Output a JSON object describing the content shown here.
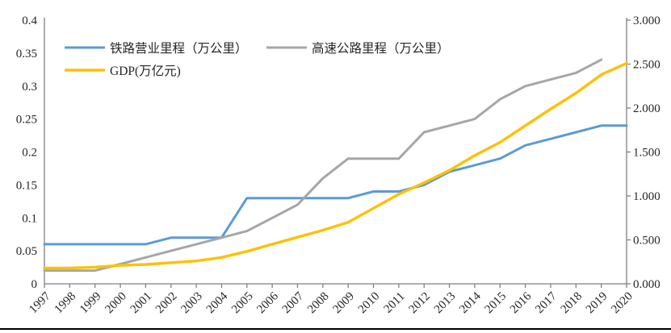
{
  "chart_data": {
    "type": "line",
    "title": "",
    "x": [
      "1997",
      "1998",
      "1999",
      "2000",
      "2001",
      "2002",
      "2003",
      "2004",
      "2005",
      "2006",
      "2007",
      "2008",
      "2009",
      "2010",
      "2011",
      "2012",
      "2013",
      "2014",
      "2015",
      "2016",
      "2017",
      "2018",
      "2019",
      "2020"
    ],
    "series": [
      {
        "name": "铁路营业里程（万公里）",
        "axis": "left",
        "color": "#5B9BD5",
        "stroke_width": 3,
        "values": [
          0.06,
          0.06,
          0.06,
          0.06,
          0.06,
          0.07,
          0.07,
          0.07,
          0.13,
          0.13,
          0.13,
          0.13,
          0.13,
          0.14,
          0.14,
          0.15,
          0.17,
          0.18,
          0.19,
          0.21,
          0.22,
          0.23,
          0.24,
          0.24
        ]
      },
      {
        "name": "高速公路里程（万公里）",
        "axis": "left",
        "color": "#A6A6A6",
        "stroke_width": 3,
        "values": [
          0.02,
          0.02,
          0.02,
          0.03,
          0.04,
          0.05,
          0.06,
          0.07,
          0.08,
          0.1,
          0.12,
          0.16,
          0.19,
          0.19,
          0.19,
          0.23,
          0.24,
          0.25,
          0.28,
          0.3,
          0.31,
          0.32,
          0.34,
          null
        ]
      },
      {
        "name": "GDP(万亿元)",
        "axis": "right",
        "color": "#FFC000",
        "stroke_width": 3.4,
        "values": [
          0.18,
          0.18,
          0.19,
          0.21,
          0.22,
          0.24,
          0.26,
          0.3,
          0.37,
          0.45,
          0.53,
          0.61,
          0.7,
          0.86,
          1.02,
          1.15,
          1.29,
          1.46,
          1.61,
          1.8,
          1.99,
          2.17,
          2.38,
          2.51
        ]
      }
    ],
    "left_axis": {
      "min": 0,
      "max": 0.4,
      "tick_labels": [
        "0",
        "0.05",
        "0.1",
        "0.15",
        "0.2",
        "0.25",
        "0.3",
        "0.35",
        "0.4"
      ]
    },
    "right_axis": {
      "min": 0,
      "max": 3.0,
      "tick_labels": [
        "0.000",
        "0.500",
        "1.000",
        "1.500",
        "2.000",
        "2.500",
        "3.000"
      ]
    },
    "legend_position": "top-left-inside",
    "grid": false,
    "axis_color": "#808080",
    "label_color": "#262626"
  }
}
